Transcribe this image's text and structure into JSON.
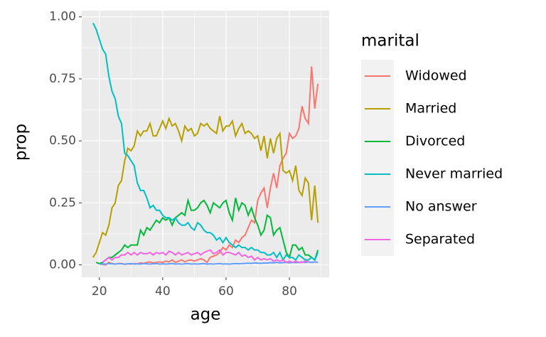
{
  "chart_data": {
    "type": "line",
    "x_label": "age",
    "y_label": "prop",
    "legend_title": "marital",
    "legend_position": "right",
    "grid": true,
    "x": [
      18,
      19,
      20,
      21,
      22,
      23,
      24,
      25,
      26,
      27,
      28,
      29,
      30,
      31,
      32,
      33,
      34,
      35,
      36,
      37,
      38,
      39,
      40,
      41,
      42,
      43,
      44,
      45,
      46,
      47,
      48,
      49,
      50,
      51,
      52,
      53,
      54,
      55,
      56,
      57,
      58,
      59,
      60,
      61,
      62,
      63,
      64,
      65,
      66,
      67,
      68,
      69,
      70,
      71,
      72,
      73,
      74,
      75,
      76,
      77,
      78,
      79,
      80,
      81,
      82,
      83,
      84,
      85,
      86,
      87,
      88,
      89
    ],
    "xlim": [
      14.45,
      92.55
    ],
    "xticks": [
      20,
      40,
      60,
      80
    ],
    "x_minor_ticks": [
      30,
      50,
      70,
      90
    ],
    "ylim": [
      -0.05,
      1.025
    ],
    "yticks": [
      {
        "value": 0,
        "label": "0.00"
      },
      {
        "value": 0.25,
        "label": "0.25"
      },
      {
        "value": 0.5,
        "label": "0.50"
      },
      {
        "value": 0.75,
        "label": "0.75"
      },
      {
        "value": 1,
        "label": "1.00"
      }
    ],
    "y_minor_ticks": [
      0.125,
      0.375,
      0.625,
      0.875
    ],
    "series": [
      {
        "name": "Widowed",
        "color": "#F8766D",
        "values": [
          null,
          null,
          0.005,
          0.002,
          0.0,
          0.01,
          0.005,
          0.003,
          0.005,
          0.005,
          0.002,
          0.004,
          0.003,
          0.005,
          0.004,
          0.008,
          0.006,
          0.01,
          0.012,
          0.008,
          0.01,
          0.012,
          0.01,
          0.015,
          0.012,
          0.02,
          0.01,
          0.015,
          0.02,
          0.012,
          0.018,
          0.02,
          0.015,
          0.02,
          0.025,
          0.02,
          0.01,
          0.03,
          0.035,
          0.04,
          0.05,
          0.07,
          0.06,
          0.08,
          0.07,
          0.1,
          0.09,
          0.11,
          0.12,
          0.15,
          0.18,
          0.17,
          0.26,
          0.29,
          0.31,
          0.23,
          0.31,
          0.37,
          0.31,
          0.4,
          0.43,
          0.45,
          0.53,
          0.51,
          0.52,
          0.55,
          0.64,
          0.59,
          0.57,
          0.8,
          0.63,
          0.73
        ]
      },
      {
        "name": "Married",
        "color": "#B79F00",
        "values": [
          0.03,
          0.05,
          0.09,
          0.13,
          0.12,
          0.16,
          0.23,
          0.25,
          0.32,
          0.34,
          0.42,
          0.47,
          0.46,
          0.48,
          0.54,
          0.52,
          0.54,
          0.54,
          0.57,
          0.52,
          0.52,
          0.55,
          0.58,
          0.55,
          0.59,
          0.56,
          0.57,
          0.54,
          0.5,
          0.56,
          0.54,
          0.55,
          0.52,
          0.53,
          0.57,
          0.56,
          0.57,
          0.55,
          0.54,
          0.53,
          0.6,
          0.54,
          0.56,
          0.56,
          0.58,
          0.52,
          0.55,
          0.57,
          0.53,
          0.54,
          0.53,
          0.51,
          0.52,
          0.46,
          0.52,
          0.43,
          0.51,
          0.45,
          0.51,
          0.53,
          0.38,
          0.37,
          0.38,
          0.34,
          0.4,
          0.3,
          0.28,
          0.35,
          0.33,
          0.18,
          0.32,
          0.17
        ]
      },
      {
        "name": "Divorced",
        "color": "#00BA38",
        "values": [
          null,
          0.01,
          0.005,
          0.01,
          0.02,
          0.03,
          0.03,
          0.04,
          0.05,
          0.06,
          0.08,
          0.07,
          0.08,
          0.08,
          0.08,
          0.14,
          0.12,
          0.15,
          0.14,
          0.16,
          0.18,
          0.17,
          0.19,
          0.18,
          0.19,
          0.16,
          0.19,
          0.2,
          0.21,
          0.2,
          0.26,
          0.22,
          0.22,
          0.23,
          0.25,
          0.26,
          0.24,
          0.21,
          0.25,
          0.24,
          0.23,
          0.25,
          0.26,
          0.21,
          0.18,
          0.27,
          0.22,
          0.25,
          0.24,
          0.2,
          0.23,
          0.19,
          0.16,
          0.12,
          0.14,
          0.2,
          0.19,
          0.12,
          0.14,
          0.15,
          0.1,
          0.05,
          0.03,
          0.08,
          0.08,
          0.06,
          0.07,
          0.04,
          0.04,
          0.03,
          0.02,
          0.06
        ]
      },
      {
        "name": "Never married",
        "color": "#00BFC4",
        "values": [
          0.975,
          0.95,
          0.91,
          0.87,
          0.85,
          0.76,
          0.7,
          0.67,
          0.6,
          0.57,
          0.45,
          0.44,
          0.42,
          0.4,
          0.33,
          0.3,
          0.3,
          0.27,
          0.23,
          0.24,
          0.22,
          0.22,
          0.2,
          0.19,
          0.19,
          0.18,
          0.19,
          0.17,
          0.16,
          0.16,
          0.17,
          0.15,
          0.14,
          0.17,
          0.16,
          0.14,
          0.13,
          0.13,
          0.12,
          0.1,
          0.11,
          0.09,
          0.11,
          0.09,
          0.08,
          0.07,
          0.08,
          0.07,
          0.07,
          0.06,
          0.07,
          0.06,
          0.06,
          0.05,
          0.05,
          0.04,
          0.04,
          0.05,
          0.03,
          0.05,
          0.02,
          0.04,
          0.03,
          0.03,
          0.02,
          0.04,
          0.03,
          0.02,
          0.02,
          0.03,
          0.02,
          0.05
        ]
      },
      {
        "name": "No answer",
        "color": "#619CFF",
        "values": [
          null,
          null,
          0.003,
          0.004,
          0.003,
          0.005,
          0.004,
          0.003,
          0.005,
          0.004,
          0.003,
          0.004,
          0.005,
          0.003,
          0.004,
          0.003,
          0.005,
          0.004,
          0.003,
          0.004,
          0.005,
          0.003,
          0.004,
          0.003,
          0.004,
          0.005,
          0.003,
          0.004,
          0.003,
          0.004,
          0.005,
          0.003,
          0.004,
          0.003,
          0.004,
          0.005,
          0.003,
          0.004,
          0.003,
          0.004,
          0.005,
          0.003,
          0.004,
          0.003,
          0.004,
          0.005,
          0.004,
          0.005,
          0.006,
          0.007,
          0.006,
          0.008,
          0.007,
          0.006,
          0.008,
          0.007,
          0.009,
          0.008,
          0.01,
          0.008,
          0.009,
          0.01,
          0.008,
          0.01,
          0.009,
          0.01,
          0.012,
          0.01,
          0.012,
          0.01,
          0.012,
          0.01
        ]
      },
      {
        "name": "Separated",
        "color": "#F564E3",
        "values": [
          null,
          null,
          null,
          0.01,
          0.02,
          0.03,
          0.02,
          0.03,
          0.03,
          0.04,
          0.04,
          0.05,
          0.04,
          0.05,
          0.04,
          0.05,
          0.045,
          0.045,
          0.05,
          0.04,
          0.05,
          0.045,
          0.05,
          0.04,
          0.055,
          0.05,
          0.04,
          0.05,
          0.04,
          0.045,
          0.05,
          0.04,
          0.045,
          0.05,
          0.04,
          0.05,
          0.055,
          0.06,
          0.045,
          0.05,
          0.06,
          0.04,
          0.05,
          0.05,
          0.045,
          0.04,
          0.05,
          0.035,
          0.04,
          0.03,
          0.035,
          0.02,
          0.03,
          0.02,
          0.025,
          0.02,
          0.025,
          0.015,
          0.02,
          0.015,
          0.02,
          0.01,
          0.015,
          0.01,
          0.015,
          0.01,
          0.01,
          0.015,
          0.012,
          null,
          null,
          null
        ]
      }
    ]
  }
}
